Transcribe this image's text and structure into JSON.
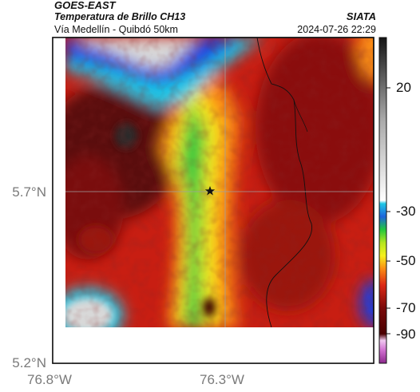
{
  "header": {
    "satellite": "GOES-EAST",
    "product": "Temperatura de Brillo CH13",
    "route": "Vía Medellín - Quibdó 50km",
    "brand": "SIATA",
    "datetime": "2024-07-26 22:29"
  },
  "map": {
    "lat_ticks": [
      "5.7°N",
      "5.2°N"
    ],
    "lon_ticks": [
      "76.8°W",
      "76.3°W"
    ],
    "marker": "star",
    "gridlines": true
  },
  "colorbar": {
    "ticks": [
      "20",
      "-30",
      "-50",
      "-70",
      "-90"
    ],
    "colors": {
      "warm": "#3a3a3a",
      "gray": "#c8c8c8",
      "cyan": "#1ec8e6",
      "green": "#22c83c",
      "yellow": "#f5f01e",
      "orange": "#fa8c14",
      "red": "#dc2814",
      "darkred": "#5a0a0a",
      "magenta": "#b43cb4"
    }
  }
}
